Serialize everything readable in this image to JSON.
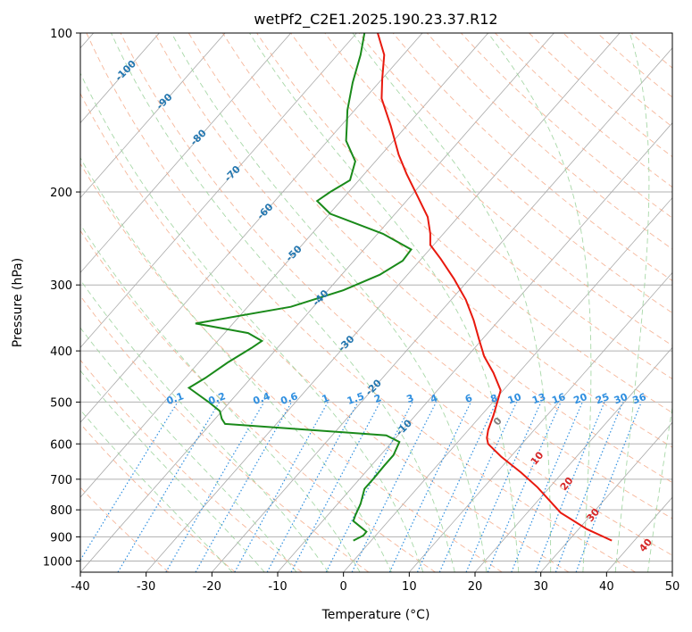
{
  "chart_data": {
    "type": "line",
    "title": "wetPf2_C2E1.2025.190.23.37.R12",
    "xlabel": "Temperature (°C)",
    "ylabel": "Pressure (hPa)",
    "xlim": [
      -40,
      50
    ],
    "ylim": [
      1050,
      100
    ],
    "y_scale": "log",
    "grid": true,
    "x_ticks": [
      -40,
      -30,
      -20,
      -10,
      0,
      10,
      20,
      30,
      40,
      50
    ],
    "y_ticks": [
      100,
      200,
      300,
      400,
      500,
      600,
      700,
      800,
      900,
      1000
    ],
    "series": [
      {
        "role": "temperature",
        "color": "#e8190e",
        "points": [
          [
            40.8,
            915
          ],
          [
            37,
            870
          ],
          [
            33,
            810
          ],
          [
            29.5,
            725
          ],
          [
            27,
            680
          ],
          [
            24,
            635
          ],
          [
            22,
            600
          ],
          [
            21.8,
            585
          ],
          [
            22,
            565
          ],
          [
            22.8,
            530
          ],
          [
            23.4,
            500
          ],
          [
            23.9,
            475
          ],
          [
            22.8,
            440
          ],
          [
            21.4,
            410
          ],
          [
            20.6,
            380
          ],
          [
            19.8,
            350
          ],
          [
            18.6,
            320
          ],
          [
            16.8,
            292
          ],
          [
            14.8,
            268
          ],
          [
            13.2,
            252
          ],
          [
            13.2,
            240
          ],
          [
            12.8,
            223
          ],
          [
            11.2,
            203
          ],
          [
            9.6,
            185
          ],
          [
            8.4,
            170
          ],
          [
            7.2,
            150
          ],
          [
            5.8,
            133
          ],
          [
            5.9,
            122
          ],
          [
            6.2,
            110
          ],
          [
            5.2,
            100
          ]
        ]
      },
      {
        "role": "dewpoint",
        "color": "#1a8a1a",
        "points": [
          [
            1.5,
            915
          ],
          [
            3,
            895
          ],
          [
            3.5,
            880
          ],
          [
            2.5,
            860
          ],
          [
            1.5,
            840
          ],
          [
            1.8,
            820
          ],
          [
            2.6,
            780
          ],
          [
            3.2,
            730
          ],
          [
            4.5,
            700
          ],
          [
            6.2,
            660
          ],
          [
            7.6,
            630
          ],
          [
            8.5,
            595
          ],
          [
            6.5,
            578
          ],
          [
            -2,
            568
          ],
          [
            -18,
            550
          ],
          [
            -18.5,
            538
          ],
          [
            -18.8,
            520
          ],
          [
            -20.5,
            500
          ],
          [
            -23.5,
            470
          ],
          [
            -21,
            450
          ],
          [
            -17.5,
            420
          ],
          [
            -14,
            395
          ],
          [
            -12.4,
            383
          ],
          [
            -14.5,
            370
          ],
          [
            -22.5,
            355
          ],
          [
            -8,
            330
          ],
          [
            0,
            307
          ],
          [
            5.5,
            287
          ],
          [
            9,
            270
          ],
          [
            10.3,
            257
          ],
          [
            6,
            240
          ],
          [
            -2,
            220
          ],
          [
            -4,
            208
          ],
          [
            -2,
            200
          ],
          [
            1,
            190
          ],
          [
            1.8,
            175
          ],
          [
            0.4,
            160
          ],
          [
            0.5,
            150
          ],
          [
            0.6,
            140
          ],
          [
            1.4,
            124
          ],
          [
            2.6,
            110
          ],
          [
            3.2,
            100
          ]
        ]
      }
    ],
    "mixing_ratio_labels": [
      "0.1",
      "0.2",
      "0.4",
      "0.6",
      "1",
      "1.5",
      "2",
      "3",
      "4",
      "6",
      "8",
      "10",
      "13",
      "16",
      "20",
      "25",
      "30",
      "36"
    ],
    "isotherm_labels": [
      "-100",
      "-90",
      "-80",
      "-70",
      "-60",
      "-50",
      "-40",
      "-30",
      "-20",
      "-10"
    ],
    "moist_adiabat_labels": [
      "0",
      "10",
      "20",
      "30",
      "40"
    ],
    "colors": {
      "temperature": "#e8190e",
      "dewpoint": "#1a8a1a",
      "isotherm": "#a9a9a9",
      "grid": "#b0b0b0",
      "dry_adiabat": "#f4a582",
      "moist_adiabat": "#9fd49f",
      "mixing_ratio": "#2f8fe0",
      "isotherm_label": "#2477b0",
      "mixing_ratio_label": "#2f8fe0",
      "moist_label_red": "#d62728",
      "moist_label_gray": "#808080"
    }
  }
}
